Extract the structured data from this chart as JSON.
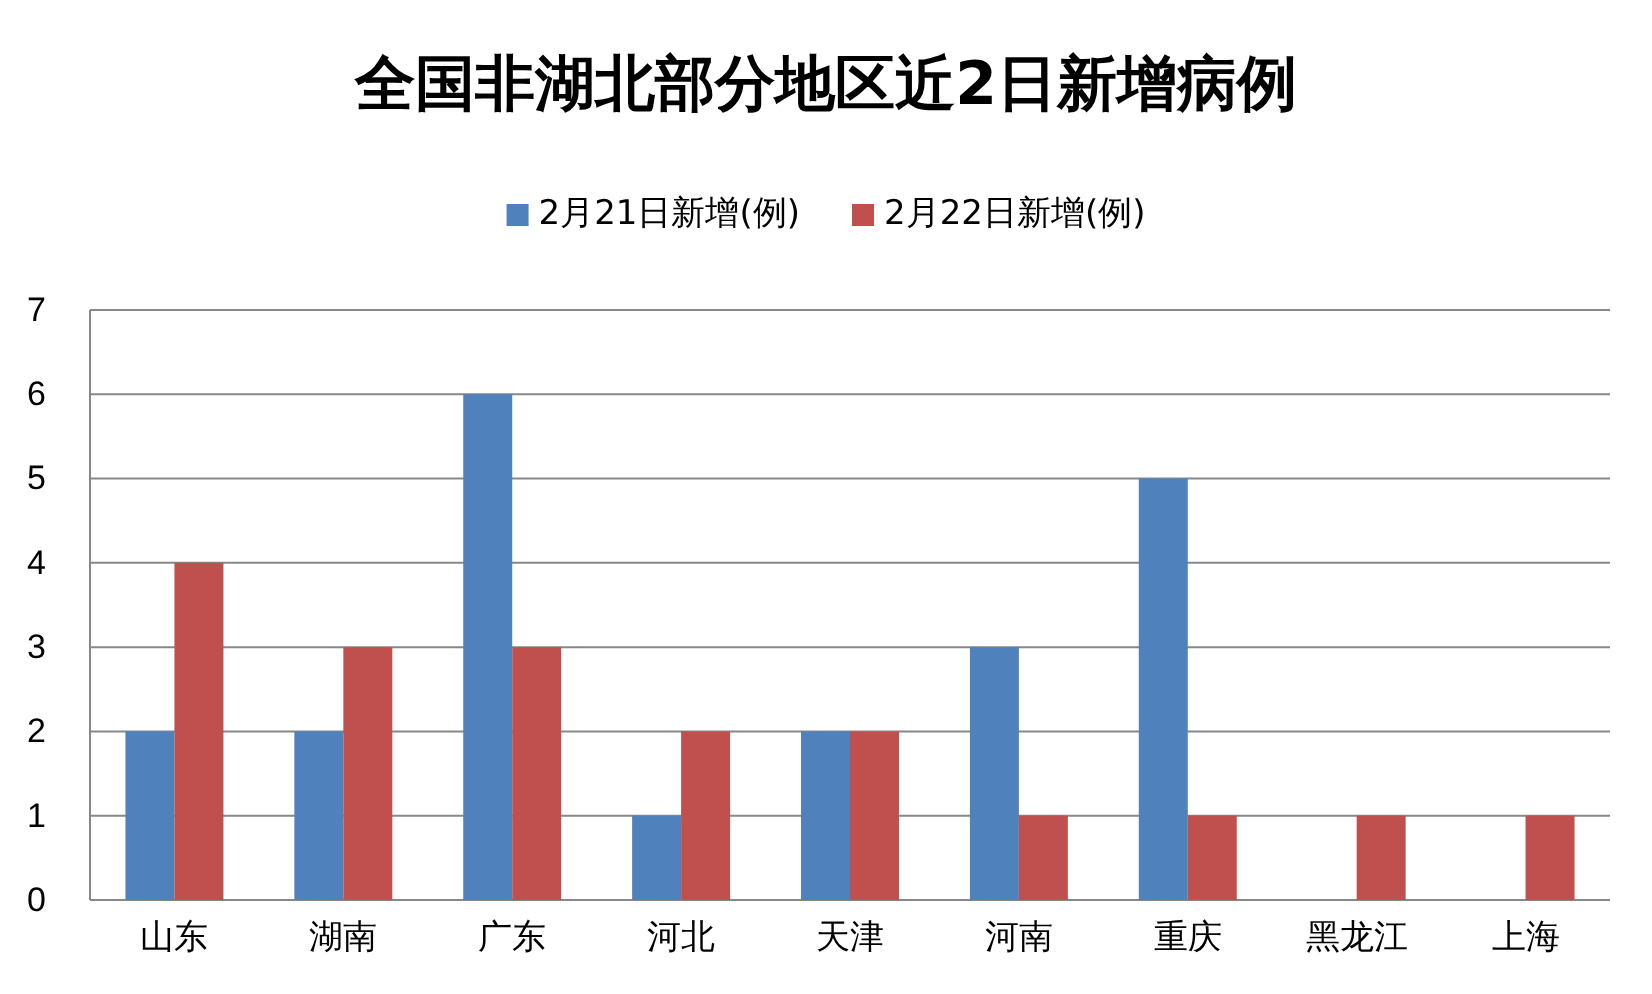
{
  "chart_data": {
    "type": "bar",
    "title": "全国非湖北部分地区近2日新增病例",
    "categories": [
      "山东",
      "湖南",
      "广东",
      "河北",
      "天津",
      "河南",
      "重庆",
      "黑龙江",
      "上海"
    ],
    "series": [
      {
        "name": "2月21日新增(例)",
        "color": "#4f81bd",
        "values": [
          2,
          2,
          6,
          1,
          2,
          3,
          5,
          0,
          0
        ]
      },
      {
        "name": "2月22日新增(例)",
        "color": "#c0504d",
        "values": [
          4,
          3,
          3,
          2,
          2,
          1,
          1,
          1,
          1
        ]
      }
    ],
    "ylim": [
      0,
      7
    ],
    "yticks": [
      0,
      1,
      2,
      3,
      4,
      5,
      6,
      7
    ],
    "grid": "y",
    "legend": "top"
  }
}
